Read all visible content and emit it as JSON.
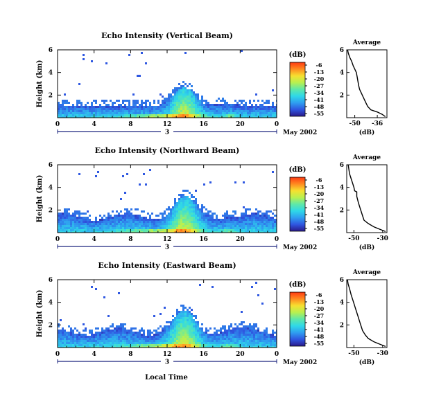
{
  "chart_data": {
    "type": "heatmap",
    "colorbar": {
      "label": "(dB)",
      "ticks": [
        -6,
        -13,
        -20,
        -27,
        -34,
        -41,
        -48,
        -55
      ],
      "stops": [
        "#2a1a8a",
        "#2f55e0",
        "#2f9ef0",
        "#2fd8e8",
        "#5fe8a8",
        "#b8f050",
        "#f6e030",
        "#ff8a20",
        "#ff3a12"
      ]
    },
    "heatmap_ylabel": "Height (km)",
    "x_axis_label": "Local Time",
    "heatmap_x_ticks": [
      "0",
      "4",
      "8",
      "12",
      "16",
      "20",
      "0"
    ],
    "heatmap_y_ticks": [
      "2",
      "4",
      "6"
    ],
    "heatmap_xlim": [
      0,
      24
    ],
    "heatmap_ylim": [
      0,
      6
    ],
    "average_title": "Average",
    "average_xlabel": "(dB)",
    "average_y_ticks": [
      "2",
      "4",
      "6"
    ],
    "panels": [
      {
        "title": "Echo Intensity (Vertical Beam)",
        "day_label": "3",
        "date_label": "May 2002",
        "avg_x_ticks": [
          "-50",
          "-36"
        ],
        "avg_xlim": [
          -55,
          -30
        ],
        "profile": [
          [
            -31,
            0.1
          ],
          [
            -33,
            0.3
          ],
          [
            -36,
            0.5
          ],
          [
            -40,
            0.7
          ],
          [
            -42,
            1.0
          ],
          [
            -43,
            1.3
          ],
          [
            -44,
            1.6
          ],
          [
            -45,
            1.9
          ],
          [
            -46,
            2.2
          ],
          [
            -47,
            2.5
          ],
          [
            -47.5,
            2.8
          ],
          [
            -48,
            3.2
          ],
          [
            -48.5,
            3.6
          ],
          [
            -49,
            4.0
          ],
          [
            -50,
            4.3
          ],
          [
            -51,
            4.6
          ],
          [
            -52,
            5.0
          ],
          [
            -53,
            5.3
          ],
          [
            -54,
            5.7
          ],
          [
            -54.5,
            6.0
          ]
        ]
      },
      {
        "title": "Echo Intensity (Northward Beam)",
        "day_label": "3",
        "date_label": "May 2002",
        "avg_x_ticks": [
          "-50",
          "-30"
        ],
        "avg_xlim": [
          -55,
          -27
        ],
        "profile": [
          [
            -28,
            0.1
          ],
          [
            -32,
            0.3
          ],
          [
            -36,
            0.5
          ],
          [
            -40,
            0.8
          ],
          [
            -43,
            1.1
          ],
          [
            -44,
            1.5
          ],
          [
            -45,
            1.9
          ],
          [
            -46,
            2.3
          ],
          [
            -47,
            2.7
          ],
          [
            -48,
            3.2
          ],
          [
            -48,
            3.6
          ],
          [
            -49.5,
            3.7
          ],
          [
            -50,
            4.0
          ],
          [
            -51,
            4.4
          ],
          [
            -52,
            4.8
          ],
          [
            -53,
            5.2
          ],
          [
            -53.5,
            5.6
          ],
          [
            -54,
            6.0
          ]
        ]
      },
      {
        "title": "Echo Intensity (Eastward Beam)",
        "day_label": "3",
        "date_label": "May 2002",
        "avg_x_ticks": [
          "-50",
          "-30"
        ],
        "avg_xlim": [
          -55,
          -27
        ],
        "profile": [
          [
            -28,
            0.1
          ],
          [
            -32,
            0.3
          ],
          [
            -36,
            0.5
          ],
          [
            -40,
            0.8
          ],
          [
            -42,
            1.1
          ],
          [
            -44,
            1.5
          ],
          [
            -45,
            1.9
          ],
          [
            -46,
            2.3
          ],
          [
            -47,
            2.7
          ],
          [
            -48,
            3.1
          ],
          [
            -49,
            3.5
          ],
          [
            -50,
            3.9
          ],
          [
            -51,
            4.3
          ],
          [
            -52,
            4.7
          ],
          [
            -53,
            5.2
          ],
          [
            -54,
            5.6
          ],
          [
            -54.5,
            6.0
          ]
        ]
      }
    ]
  }
}
